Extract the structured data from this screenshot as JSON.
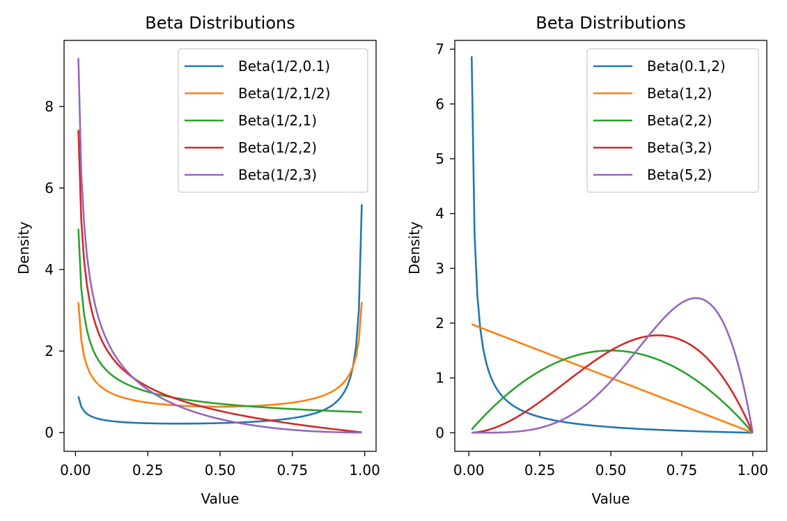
{
  "chart_data": [
    {
      "type": "line",
      "title": "Beta Distributions",
      "xlabel": "Value",
      "ylabel": "Density",
      "xlim": [
        -0.0395,
        1.0395
      ],
      "ylim": [
        -0.46,
        9.62
      ],
      "xticks": [
        0.0,
        0.25,
        0.5,
        0.75,
        1.0
      ],
      "xtick_labels": [
        "0.00",
        "0.25",
        "0.50",
        "0.75",
        "1.00"
      ],
      "yticks": [
        0,
        2,
        4,
        6,
        8
      ],
      "ytick_labels": [
        "0",
        "2",
        "4",
        "6",
        "8"
      ],
      "legend_position": "top-right",
      "grid": false,
      "x_domain": [
        0.01,
        0.99
      ],
      "series": [
        {
          "name": "Beta(1/2,0.1)",
          "a": 0.5,
          "b": 0.1,
          "color": "#1f77b4"
        },
        {
          "name": "Beta(1/2,1/2)",
          "a": 0.5,
          "b": 0.5,
          "color": "#ff7f0e"
        },
        {
          "name": "Beta(1/2,1)",
          "a": 0.5,
          "b": 1,
          "color": "#2ca02c"
        },
        {
          "name": "Beta(1/2,2)",
          "a": 0.5,
          "b": 2,
          "color": "#d62728"
        },
        {
          "name": "Beta(1/2,3)",
          "a": 0.5,
          "b": 3,
          "color": "#9467bd"
        }
      ]
    },
    {
      "type": "line",
      "title": "Beta Distributions",
      "xlabel": "Value",
      "ylabel": "Density",
      "xlim": [
        -0.0495,
        1.0495
      ],
      "ylim": [
        -0.34,
        7.16
      ],
      "xticks": [
        0.0,
        0.25,
        0.5,
        0.75,
        1.0
      ],
      "xtick_labels": [
        "0.00",
        "0.25",
        "0.50",
        "0.75",
        "1.00"
      ],
      "yticks": [
        0,
        1,
        2,
        3,
        4,
        5,
        6,
        7
      ],
      "ytick_labels": [
        "0",
        "1",
        "2",
        "3",
        "4",
        "5",
        "6",
        "7"
      ],
      "legend_position": "top-right",
      "grid": false,
      "x_domain": [
        0.01,
        1.0
      ],
      "series": [
        {
          "name": "Beta(0.1,2)",
          "a": 0.1,
          "b": 2,
          "color": "#1f77b4"
        },
        {
          "name": "Beta(1,2)",
          "a": 1,
          "b": 2,
          "color": "#ff7f0e"
        },
        {
          "name": "Beta(2,2)",
          "a": 2,
          "b": 2,
          "color": "#2ca02c"
        },
        {
          "name": "Beta(3,2)",
          "a": 3,
          "b": 2,
          "color": "#d62728"
        },
        {
          "name": "Beta(5,2)",
          "a": 5,
          "b": 2,
          "color": "#9467bd"
        }
      ]
    }
  ]
}
